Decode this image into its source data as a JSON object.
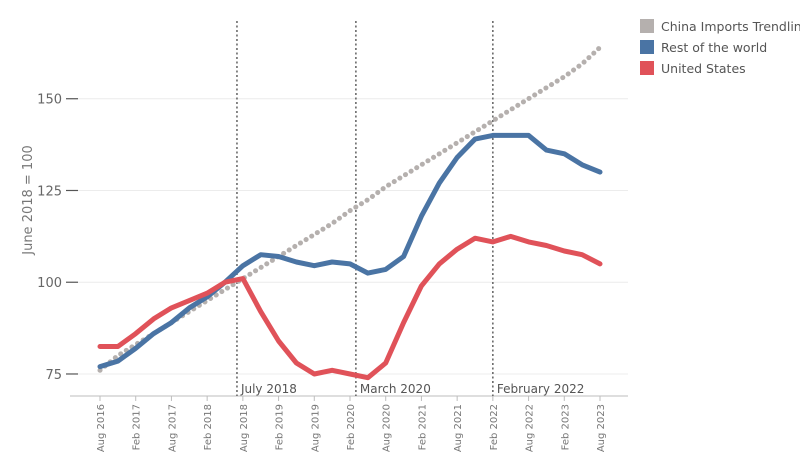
{
  "chart_data": {
    "type": "line",
    "ylabel": "June 2018 = 100",
    "ylim": [
      69,
      172
    ],
    "yticks": [
      75,
      100,
      125,
      150
    ],
    "grid": true,
    "legend_position": "top-right",
    "x": [
      "Aug 2016",
      "Nov 2016",
      "Feb 2017",
      "May 2017",
      "Aug 2017",
      "Nov 2017",
      "Feb 2018",
      "May 2018",
      "Aug 2018",
      "Nov 2018",
      "Feb 2019",
      "May 2019",
      "Aug 2019",
      "Nov 2019",
      "Feb 2020",
      "May 2020",
      "Aug 2020",
      "Nov 2020",
      "Feb 2021",
      "May 2021",
      "Aug 2021",
      "Nov 2021",
      "Feb 2022",
      "May 2022",
      "Aug 2022",
      "Nov 2022",
      "Feb 2023",
      "May 2023",
      "Aug 2023"
    ],
    "xticks": [
      "Aug 2016",
      "Feb 2017",
      "Aug 2017",
      "Feb 2018",
      "Aug 2018",
      "Feb 2019",
      "Aug 2019",
      "Feb 2020",
      "Aug 2020",
      "Feb 2021",
      "Aug 2021",
      "Feb 2022",
      "Aug 2022",
      "Feb 2023",
      "Aug 2023"
    ],
    "series": [
      {
        "name": "China Imports Trendline",
        "color": "#b5b0ae",
        "style": "dotted",
        "values": [
          76,
          80,
          83,
          86,
          89,
          92,
          95,
          98,
          101,
          104,
          107,
          110,
          113,
          116,
          119.5,
          122.5,
          126,
          129,
          132,
          135,
          138,
          141,
          144,
          147,
          150,
          153,
          156,
          159.5,
          164
        ]
      },
      {
        "name": "Rest of the world",
        "color": "#4a74a4",
        "style": "solid",
        "values": [
          77,
          78.5,
          82,
          86,
          89,
          93,
          96,
          100,
          104.5,
          107.5,
          107,
          105.5,
          104.5,
          105.5,
          105,
          102.5,
          103.5,
          107,
          118,
          127,
          134,
          139,
          140,
          140,
          140,
          136,
          135,
          132,
          130
        ]
      },
      {
        "name": "United States",
        "color": "#e05259",
        "style": "solid",
        "values": [
          82.5,
          82.5,
          86,
          90,
          93,
          95,
          97,
          100,
          101,
          92,
          84,
          78,
          75,
          76,
          75,
          74,
          78,
          89,
          99,
          105,
          109,
          112,
          111,
          112.5,
          111,
          110,
          108.5,
          107.5,
          105
        ]
      }
    ],
    "annotations": [
      {
        "label": "July 2018",
        "x_index": 7.67
      },
      {
        "label": "March 2020",
        "x_index": 14.33
      },
      {
        "label": "February 2022",
        "x_index": 22
      }
    ]
  },
  "legend": {
    "items": [
      {
        "label": "China Imports Trendline",
        "color": "#b5b0ae"
      },
      {
        "label": "Rest of the world",
        "color": "#4a74a4"
      },
      {
        "label": "United States",
        "color": "#e05259"
      }
    ]
  }
}
